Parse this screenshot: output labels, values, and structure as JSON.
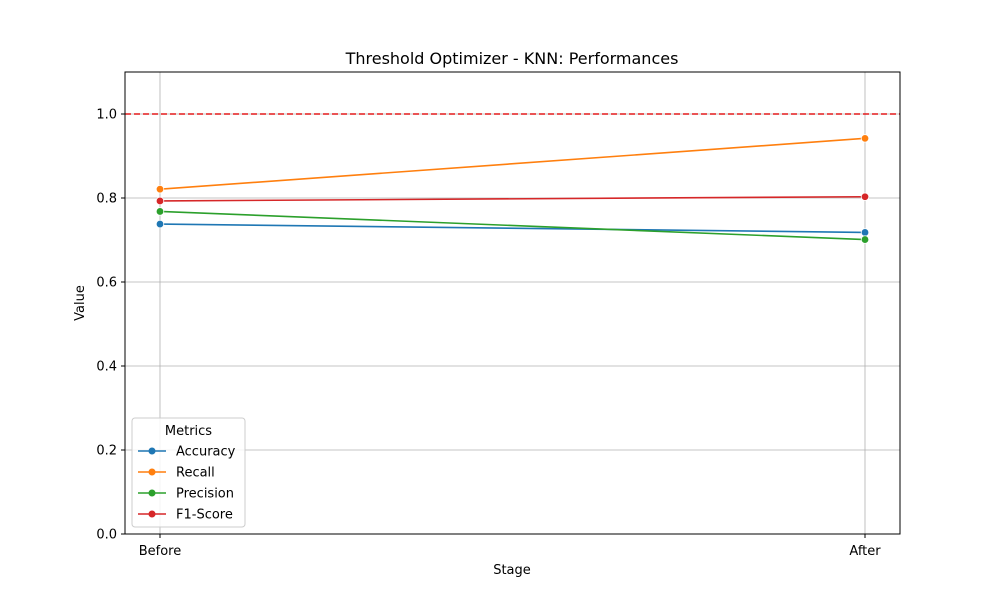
{
  "chart_data": {
    "type": "line",
    "title": "Threshold Optimizer - KNN: Performances",
    "xlabel": "Stage",
    "ylabel": "Value",
    "categories": [
      "Before",
      "After"
    ],
    "ylim": [
      0,
      1.1
    ],
    "yticks": [
      0.0,
      0.2,
      0.4,
      0.6,
      0.8,
      1.0
    ],
    "ytick_labels": [
      "0.0",
      "0.2",
      "0.4",
      "0.6",
      "0.8",
      "1.0"
    ],
    "grid": true,
    "reference_line": {
      "y": 1.0,
      "color": "#e41a1c",
      "style": "dashed"
    },
    "legend": {
      "title": "Metrics",
      "placement": "lower-left"
    },
    "series": [
      {
        "name": "Accuracy",
        "color": "#1f77b4",
        "values": [
          0.738,
          0.718
        ]
      },
      {
        "name": "Recall",
        "color": "#ff7f0e",
        "values": [
          0.821,
          0.942
        ]
      },
      {
        "name": "Precision",
        "color": "#2ca02c",
        "values": [
          0.768,
          0.701
        ]
      },
      {
        "name": "F1-Score",
        "color": "#d62728",
        "values": [
          0.793,
          0.803
        ]
      }
    ]
  }
}
